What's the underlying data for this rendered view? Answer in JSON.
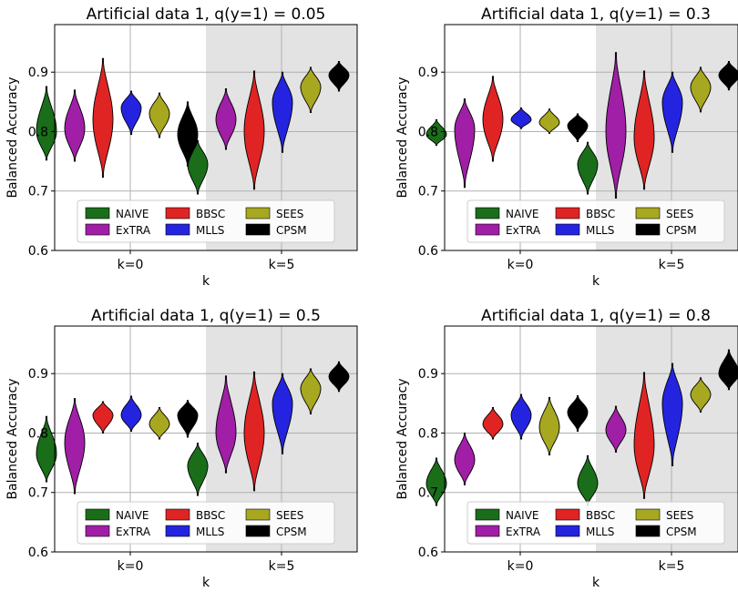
{
  "chart_data": [
    {
      "type": "violin",
      "title": "Artificial data 1, q(y=1) = 0.05",
      "xlabel": "k",
      "ylabel": "Balanced Accuracy",
      "categories": [
        "k=0",
        "k=5"
      ],
      "ylim": [
        0.6,
        0.98
      ],
      "yticks": [
        "0.6",
        "0.7",
        "0.8",
        "0.9"
      ],
      "shaded_category": "k=5",
      "grid": true,
      "legend_position": "lower-center",
      "series": [
        {
          "name": "NAIVE",
          "color": "#1a6e1a",
          "violins": [
            [
              0.752,
              0.8,
              0.876
            ],
            [
              0.695,
              0.745,
              0.785
            ]
          ]
        },
        {
          "name": "ExTRA",
          "color": "#a01fa6",
          "violins": [
            [
              0.75,
              0.805,
              0.87
            ],
            [
              0.77,
              0.82,
              0.872
            ]
          ]
        },
        {
          "name": "BBSC",
          "color": "#e02424",
          "violins": [
            [
              0.723,
              0.82,
              0.923
            ],
            [
              0.703,
              0.8,
              0.902
            ]
          ]
        },
        {
          "name": "MLLS",
          "color": "#2424e0",
          "violins": [
            [
              0.795,
              0.84,
              0.868
            ],
            [
              0.765,
              0.85,
              0.9
            ]
          ]
        },
        {
          "name": "SEES",
          "color": "#a8a820",
          "violins": [
            [
              0.79,
              0.83,
              0.865
            ],
            [
              0.832,
              0.875,
              0.908
            ]
          ]
        },
        {
          "name": "CPSM",
          "color": "#000000",
          "violins": [
            [
              0.742,
              0.795,
              0.85
            ],
            [
              0.868,
              0.895,
              0.918
            ]
          ]
        }
      ]
    },
    {
      "type": "violin",
      "title": "Artificial data 1, q(y=1) = 0.3",
      "xlabel": "k",
      "ylabel": "Balanced Accuracy",
      "categories": [
        "k=0",
        "k=5"
      ],
      "ylim": [
        0.6,
        0.98
      ],
      "yticks": [
        "0.6",
        "0.7",
        "0.8",
        "0.9"
      ],
      "shaded_category": "k=5",
      "grid": true,
      "legend_position": "lower-center",
      "series": [
        {
          "name": "NAIVE",
          "color": "#1a6e1a",
          "violins": [
            [
              0.777,
              0.795,
              0.82
            ],
            [
              0.695,
              0.745,
              0.782
            ]
          ]
        },
        {
          "name": "ExTRA",
          "color": "#a01fa6",
          "violins": [
            [
              0.706,
              0.805,
              0.855
            ],
            [
              0.688,
              0.8,
              0.933
            ]
          ]
        },
        {
          "name": "BBSC",
          "color": "#e02424",
          "violins": [
            [
              0.75,
              0.82,
              0.893
            ],
            [
              0.703,
              0.79,
              0.902
            ]
          ]
        },
        {
          "name": "MLLS",
          "color": "#2424e0",
          "violins": [
            [
              0.805,
              0.82,
              0.84
            ],
            [
              0.765,
              0.85,
              0.9
            ]
          ]
        },
        {
          "name": "SEES",
          "color": "#a8a820",
          "violins": [
            [
              0.797,
              0.815,
              0.838
            ],
            [
              0.833,
              0.875,
              0.908
            ]
          ]
        },
        {
          "name": "CPSM",
          "color": "#000000",
          "violins": [
            [
              0.783,
              0.81,
              0.83
            ],
            [
              0.87,
              0.895,
              0.918
            ]
          ]
        }
      ]
    },
    {
      "type": "violin",
      "title": "Artificial data 1, q(y=1) = 0.5",
      "xlabel": "k",
      "ylabel": "Balanced Accuracy",
      "categories": [
        "k=0",
        "k=5"
      ],
      "ylim": [
        0.6,
        0.98
      ],
      "yticks": [
        "0.6",
        "0.7",
        "0.8",
        "0.9"
      ],
      "shaded_category": "k=5",
      "grid": true,
      "legend_position": "lower-center",
      "series": [
        {
          "name": "NAIVE",
          "color": "#1a6e1a",
          "violins": [
            [
              0.718,
              0.765,
              0.828
            ],
            [
              0.695,
              0.745,
              0.783
            ]
          ]
        },
        {
          "name": "ExTRA",
          "color": "#a01fa6",
          "violins": [
            [
              0.698,
              0.785,
              0.858
            ],
            [
              0.733,
              0.8,
              0.896
            ]
          ]
        },
        {
          "name": "BBSC",
          "color": "#e02424",
          "violins": [
            [
              0.8,
              0.83,
              0.853
            ],
            [
              0.703,
              0.8,
              0.903
            ]
          ]
        },
        {
          "name": "MLLS",
          "color": "#2424e0",
          "violins": [
            [
              0.803,
              0.83,
              0.862
            ],
            [
              0.765,
              0.85,
              0.9
            ]
          ]
        },
        {
          "name": "SEES",
          "color": "#a8a820",
          "violins": [
            [
              0.79,
              0.815,
              0.843
            ],
            [
              0.832,
              0.875,
              0.908
            ]
          ]
        },
        {
          "name": "CPSM",
          "color": "#000000",
          "violins": [
            [
              0.793,
              0.83,
              0.855
            ],
            [
              0.87,
              0.895,
              0.92
            ]
          ]
        }
      ]
    },
    {
      "type": "violin",
      "title": "Artificial data 1, q(y=1) = 0.8",
      "xlabel": "k",
      "ylabel": "Balanced Accuracy",
      "categories": [
        "k=0",
        "k=5"
      ],
      "ylim": [
        0.6,
        0.98
      ],
      "yticks": [
        "0.6",
        "0.7",
        "0.8",
        "0.9"
      ],
      "shaded_category": "k=5",
      "grid": true,
      "legend_position": "lower-center",
      "series": [
        {
          "name": "NAIVE",
          "color": "#1a6e1a",
          "violins": [
            [
              0.678,
              0.715,
              0.758
            ],
            [
              0.678,
              0.715,
              0.762
            ]
          ]
        },
        {
          "name": "ExTRA",
          "color": "#a01fa6",
          "violins": [
            [
              0.713,
              0.755,
              0.8
            ],
            [
              0.768,
              0.805,
              0.845
            ]
          ]
        },
        {
          "name": "BBSC",
          "color": "#e02424",
          "violins": [
            [
              0.79,
              0.815,
              0.843
            ],
            [
              0.69,
              0.78,
              0.902
            ]
          ]
        },
        {
          "name": "MLLS",
          "color": "#2424e0",
          "violins": [
            [
              0.79,
              0.83,
              0.865
            ],
            [
              0.745,
              0.85,
              0.917
            ]
          ]
        },
        {
          "name": "SEES",
          "color": "#a8a820",
          "violins": [
            [
              0.763,
              0.81,
              0.86
            ],
            [
              0.835,
              0.865,
              0.893
            ]
          ]
        },
        {
          "name": "CPSM",
          "color": "#000000",
          "violins": [
            [
              0.803,
              0.835,
              0.863
            ],
            [
              0.873,
              0.9,
              0.94
            ]
          ]
        }
      ]
    }
  ]
}
